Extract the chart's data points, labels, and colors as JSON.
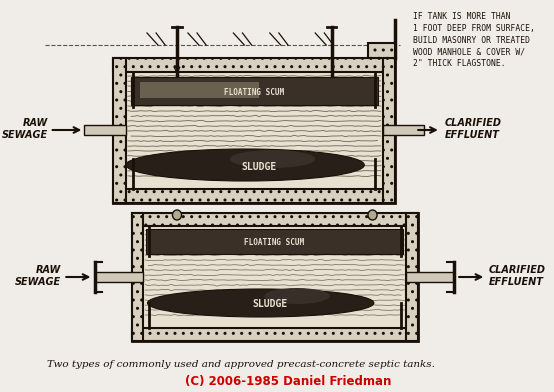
{
  "bg_color": "#f0ede8",
  "line_color": "#1a1008",
  "title_caption": "Two types of commonly used and approved precast-concrete septic tanks.",
  "copyright": "(C) 2006-1985 Daniel Friedman",
  "copyright_color": "#cc0000",
  "note_text": "IF TANK IS MORE THAN\n1 FOOT DEEP FROM SURFACE,\nBUILD MASONRY OR TREATED\nWOOD MANHOLE & COVER W/\n2\" THICK FLAGSTONE.",
  "tank1": {
    "raw_sewage_label": "RAW\nSEWAGE",
    "clarified_label": "CLARIFIED\nEFFLUENT",
    "floating_scum": "FLOATING SCUM",
    "sludge": "SLUDGE"
  },
  "tank2": {
    "raw_sewage_label": "RAW\nSEWAGE",
    "clarified_label": "CLARIFIED\nEFFLUENT",
    "floating_scum": "FLOATING SCUM",
    "sludge": "SLUDGE"
  }
}
